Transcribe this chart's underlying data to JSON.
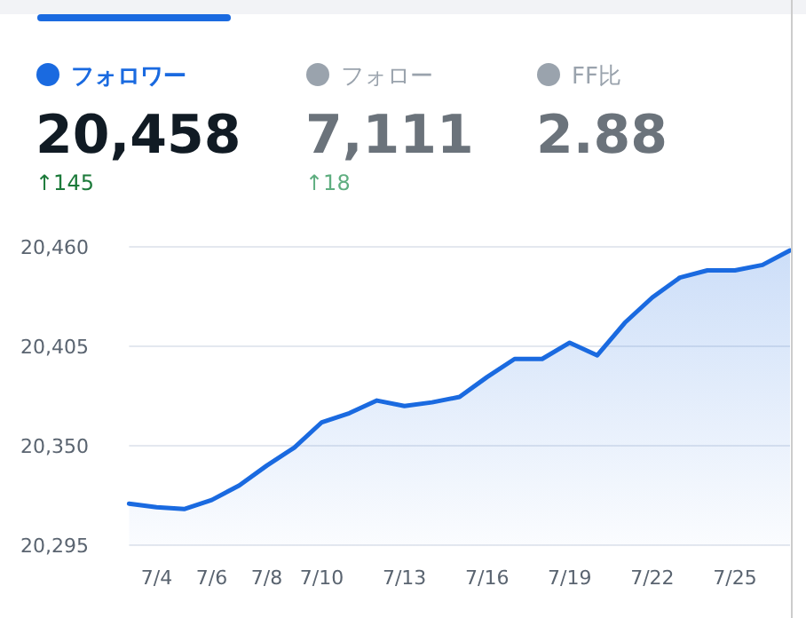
{
  "chart_data": {
    "type": "area",
    "annotations": [
      "フォロワー",
      "20,458",
      "↑145",
      "フォロー",
      "7,111",
      "↑18",
      "FF比",
      "2.88"
    ],
    "x": [
      "--07-03",
      "--07-04",
      "--07-05",
      "--07-06",
      "--07-07",
      "--07-08",
      "--07-09",
      "--07-10",
      "--07-11",
      "--07-12",
      "--07-13",
      "--07-14",
      "--07-15",
      "--07-16",
      "--07-17",
      "--07-18",
      "--07-19",
      "--07-20",
      "--07-21",
      "--07-22",
      "--07-23",
      "--07-24",
      "--07-25",
      "--07-26",
      "--07-27"
    ],
    "series": [
      {
        "color": "#1a6ae0",
        "values": [
          20318,
          20316,
          20315,
          20320,
          20328,
          20339,
          20349,
          20363,
          20368,
          20375,
          20372,
          20374,
          20377,
          20388,
          20398,
          20398,
          20407,
          20400,
          20418,
          20432,
          20443,
          20447,
          20447,
          20450,
          20458
        ]
      }
    ],
    "xlim": [
      "--07-03",
      "--07-27"
    ],
    "xticks": [
      {
        "value": "--07-04",
        "label": "7/4"
      },
      {
        "value": "--07-06",
        "label": "7/6"
      },
      {
        "value": "--07-08",
        "label": "7/8"
      },
      {
        "value": "--07-10",
        "label": "7/10"
      },
      {
        "value": "--07-13",
        "label": "7/13"
      },
      {
        "value": "--07-16",
        "label": "7/16"
      },
      {
        "value": "--07-19",
        "label": "7/19"
      },
      {
        "value": "--07-22",
        "label": "7/22"
      },
      {
        "value": "--07-25",
        "label": "7/25"
      }
    ],
    "ylim": [
      20295,
      20460
    ],
    "yticks": [
      {
        "value": 20295,
        "label": "20,295"
      },
      {
        "value": 20350,
        "label": "20,350"
      },
      {
        "value": 20405,
        "label": "20,405"
      },
      {
        "value": 20460,
        "label": "20,460"
      }
    ],
    "grid": "y"
  }
}
